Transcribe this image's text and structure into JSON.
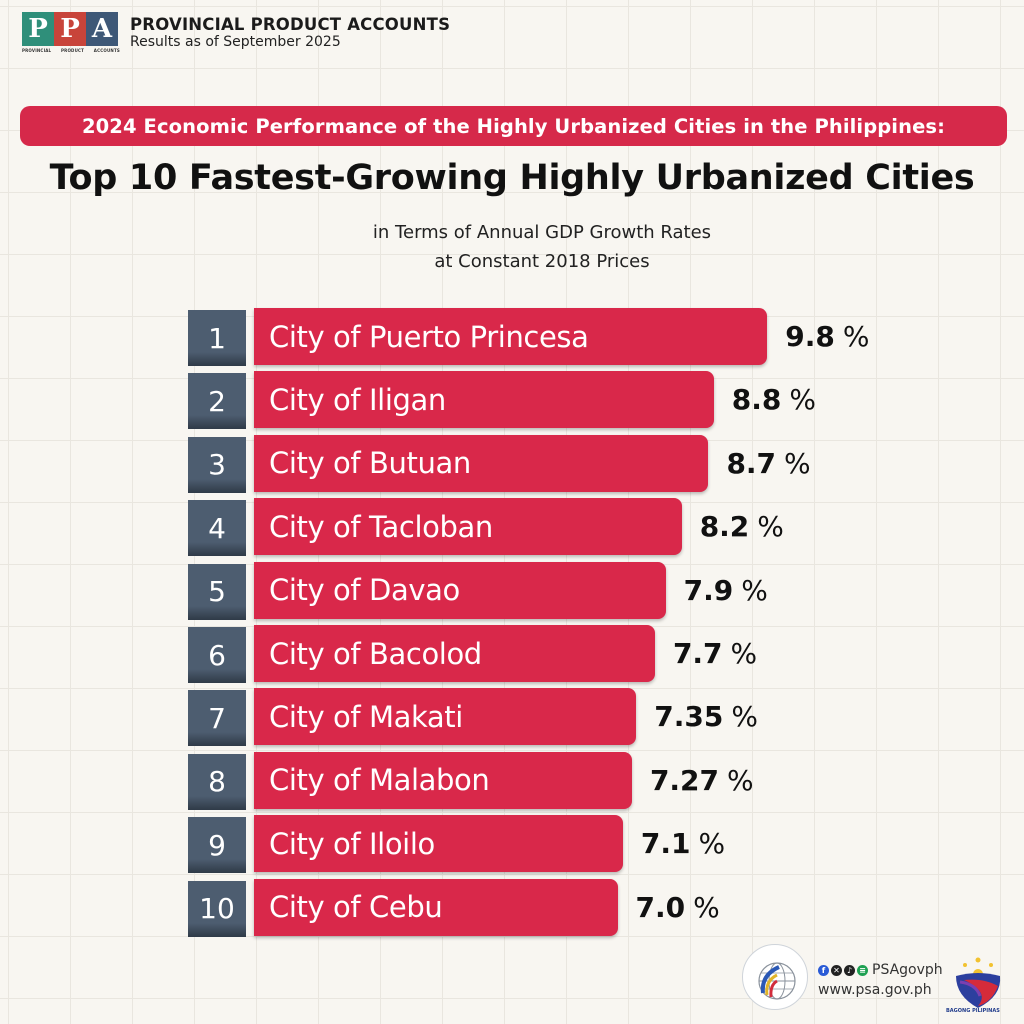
{
  "header": {
    "logo_letters": [
      "P",
      "P",
      "A"
    ],
    "logo_caption": [
      "PROVINCIAL",
      "PRODUCT",
      "ACCOUNTS"
    ],
    "title": "PROVINCIAL PRODUCT ACCOUNTS",
    "subtitle": "Results as of September 2025"
  },
  "banner": "2024 Economic Performance of the Highly Urbanized Cities in the Philippines:",
  "main_title": "Top 10 Fastest-Growing Highly Urbanized Cities",
  "subtitle_lines": [
    "in Terms of Annual GDP Growth Rates",
    "at Constant 2018 Prices"
  ],
  "colors": {
    "bar": "#d9284a",
    "banner": "#d6294a",
    "rank_box": "#4d5d70",
    "background": "#f8f6f1"
  },
  "chart_data": {
    "type": "bar",
    "orientation": "horizontal",
    "title": "Top 10 Fastest-Growing Highly Urbanized Cities",
    "subtitle": "in Terms of Annual GDP Growth Rates at Constant 2018 Prices",
    "xlabel": "",
    "ylabel": "",
    "unit": "%",
    "grid": false,
    "xlim": [
      0,
      10
    ],
    "ranks": [
      "1",
      "2",
      "3",
      "4",
      "5",
      "6",
      "7",
      "8",
      "9",
      "10"
    ],
    "categories": [
      "City of Puerto Princesa",
      "City of Iligan",
      "City of Butuan",
      "City of Tacloban",
      "City of Davao",
      "City of Bacolod",
      "City of Makati",
      "City of Malabon",
      "City of Iloilo",
      "City of Cebu"
    ],
    "values": [
      9.8,
      8.8,
      8.7,
      8.2,
      7.9,
      7.7,
      7.35,
      7.27,
      7.1,
      7.0
    ],
    "value_labels": [
      "9.8",
      "8.8",
      "8.7",
      "8.2",
      "7.9",
      "7.7",
      "7.35",
      "7.27",
      "7.1",
      "7.0"
    ]
  },
  "footer": {
    "social_handle": "PSAgovph",
    "website": "www.psa.gov.ph",
    "social_icons": [
      "facebook-icon",
      "x-icon",
      "tiktok-icon",
      "spotify-icon"
    ],
    "bp_caption": "BAGONG PILIPINAS"
  }
}
